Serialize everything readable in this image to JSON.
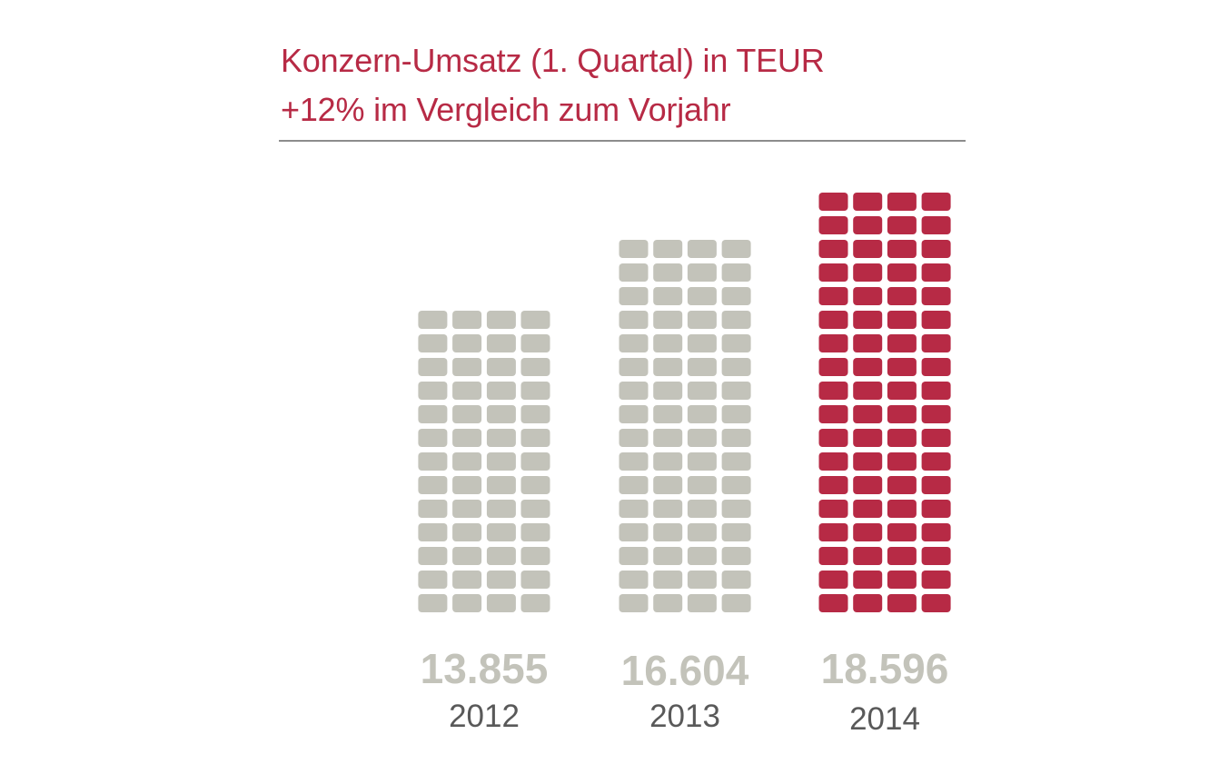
{
  "header": {
    "title": "Konzern-Umsatz (1. Quartal) in TEUR",
    "subtitle": "+12% im Vergleich zum Vorjahr"
  },
  "colors": {
    "accent": "#b72a45",
    "muted": "#c3c3ba",
    "rule": "#8c8c8c",
    "year_text": "#595959"
  },
  "chart_data": {
    "type": "bar",
    "title": "Konzern-Umsatz (1. Quartal) in TEUR",
    "subtitle": "+12% im Vergleich zum Vorjahr",
    "categories": [
      "2012",
      "2013",
      "2014"
    ],
    "values": [
      13855,
      16604,
      18596
    ],
    "value_labels": [
      "13.855",
      "16.604",
      "18.596"
    ],
    "highlight_index": 2,
    "grid": false,
    "ylim": [
      0,
      18596
    ]
  }
}
